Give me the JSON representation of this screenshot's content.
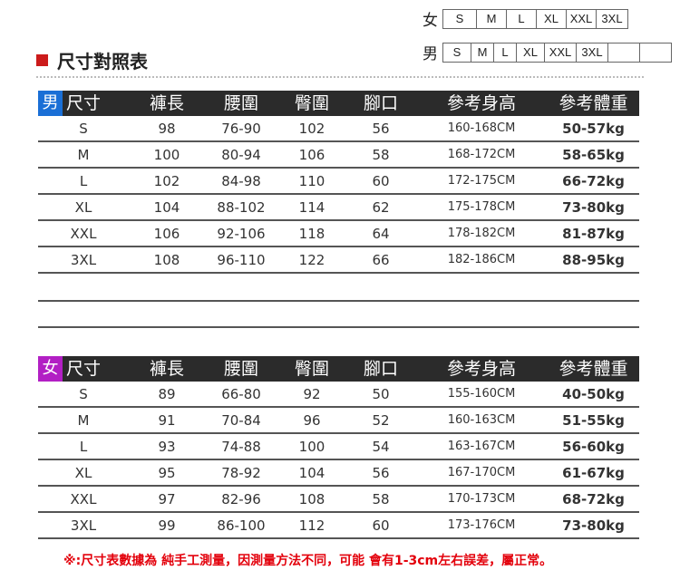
{
  "size_legend": {
    "women": {
      "label": "女",
      "sizes": [
        "S",
        "M",
        "L",
        "XL",
        "XXL",
        "3XL"
      ]
    },
    "men": {
      "label": "男",
      "sizes": [
        "S",
        "M",
        "L",
        "XL",
        "XXL",
        "3XL",
        "",
        ""
      ]
    }
  },
  "title": "尺寸對照表",
  "colors": {
    "accent": "#cc1b1b",
    "header_bg": "#2b2b2b",
    "men_tag": "#1a6fd6",
    "women_tag": "#b21fc4",
    "note": "#e3000b"
  },
  "headers": [
    "尺寸",
    "褲長",
    "腰圍",
    "臀圍",
    "腳口",
    "參考身高",
    "參考體重"
  ],
  "men_table": {
    "tag": "男",
    "rows": [
      [
        "S",
        "98",
        "76-90",
        "102",
        "56",
        "160-168CM",
        "50-57kg"
      ],
      [
        "M",
        "100",
        "80-94",
        "106",
        "58",
        "168-172CM",
        "58-65kg"
      ],
      [
        "L",
        "102",
        "84-98",
        "110",
        "60",
        "172-175CM",
        "66-72kg"
      ],
      [
        "XL",
        "104",
        "88-102",
        "114",
        "62",
        "175-178CM",
        "73-80kg"
      ],
      [
        "XXL",
        "106",
        "92-106",
        "118",
        "64",
        "178-182CM",
        "81-87kg"
      ],
      [
        "3XL",
        "108",
        "96-110",
        "122",
        "66",
        "182-186CM",
        "88-95kg"
      ]
    ]
  },
  "women_table": {
    "tag": "女",
    "rows": [
      [
        "S",
        "89",
        "66-80",
        "92",
        "50",
        "155-160CM",
        "40-50kg"
      ],
      [
        "M",
        "91",
        "70-84",
        "96",
        "52",
        "160-163CM",
        "51-55kg"
      ],
      [
        "L",
        "93",
        "74-88",
        "100",
        "54",
        "163-167CM",
        "56-60kg"
      ],
      [
        "XL",
        "95",
        "78-92",
        "104",
        "56",
        "167-170CM",
        "61-67kg"
      ],
      [
        "XXL",
        "97",
        "82-96",
        "108",
        "58",
        "170-173CM",
        "68-72kg"
      ],
      [
        "3XL",
        "99",
        "86-100",
        "112",
        "60",
        "173-176CM",
        "73-80kg"
      ]
    ]
  },
  "note": "※:尺寸表數據為 純手工測量，因測量方法不同，可能 會有1-3cm左右誤差，屬正常。"
}
